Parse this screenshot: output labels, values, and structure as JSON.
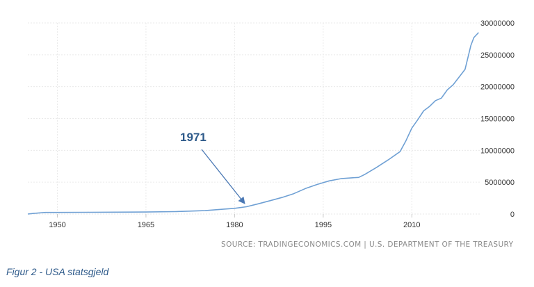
{
  "chart_data": {
    "type": "line",
    "title": "",
    "xlabel": "",
    "ylabel": "",
    "xlim": [
      1945,
      2021.5
    ],
    "ylim": [
      0,
      30000000
    ],
    "x_ticks": [
      "1950",
      "1965",
      "1980",
      "1995",
      "2010"
    ],
    "y_ticks": [
      "0",
      "5000000",
      "10000000",
      "15000000",
      "20000000",
      "25000000",
      "30000000"
    ],
    "grid": true,
    "series": [
      {
        "name": "USA statsgjeld",
        "color": "#6fa0d4",
        "x": [
          1945,
          1946,
          1948,
          1950,
          1955,
          1960,
          1965,
          1970,
          1975,
          1978,
          1980,
          1982,
          1984,
          1986,
          1988,
          1990,
          1992,
          1994,
          1996,
          1998,
          2000,
          2001,
          2002,
          2004,
          2006,
          2008,
          2009,
          2010,
          2011,
          2012,
          2013,
          2014,
          2015,
          2016,
          2017,
          2018,
          2019,
          2020,
          2020.5,
          2021,
          2021.3
        ],
        "values": [
          0,
          100000,
          250000,
          250000,
          270000,
          290000,
          320000,
          380000,
          530000,
          750000,
          900000,
          1150000,
          1600000,
          2100000,
          2600000,
          3200000,
          4000000,
          4650000,
          5200000,
          5550000,
          5700000,
          5750000,
          6200000,
          7300000,
          8500000,
          9800000,
          11500000,
          13500000,
          14800000,
          16200000,
          16900000,
          17800000,
          18200000,
          19500000,
          20300000,
          21500000,
          22700000,
          26500000,
          27700000,
          28200000,
          28500000
        ]
      }
    ],
    "annotations": [
      {
        "text": "1971"
      }
    ]
  },
  "source": "SOURCE: TRADINGECONOMICS.COM | U.S. DEPARTMENT OF THE TREASURY",
  "caption": "Figur 2 - USA statsgjeld"
}
